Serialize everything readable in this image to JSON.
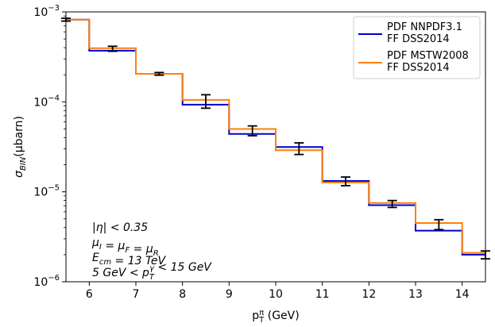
{
  "chart_data": {
    "type": "line",
    "step": true,
    "log_y": true,
    "xlabel_base": "p",
    "xlabel_sub": "T",
    "xlabel_sup": "π",
    "xlabel_unit": " (GeV)",
    "ylabel_base": "σ",
    "ylabel_sub": "BIN",
    "ylabel_unit": "(μbarn)",
    "xlim": [
      5.5,
      14.5
    ],
    "ylim": [
      1e-06,
      0.001
    ],
    "x_ticks": [
      6,
      7,
      8,
      9,
      10,
      11,
      12,
      13,
      14
    ],
    "y_ticks": [
      {
        "value": 1e-06,
        "base": "10",
        "exp": "−6"
      },
      {
        "value": 1e-05,
        "base": "10",
        "exp": "−5"
      },
      {
        "value": 0.0001,
        "base": "10",
        "exp": "−4"
      },
      {
        "value": 0.001,
        "base": "10",
        "exp": "−3"
      }
    ],
    "bin_edges": [
      5.5,
      6,
      7,
      8,
      9,
      10,
      11,
      12,
      13,
      14,
      14.5
    ],
    "series": [
      {
        "name": "PDF NNPDF3.1\nFF DSS2014",
        "color": "#0000cc",
        "values": [
          0.00082,
          0.00037,
          0.000205,
          9.3e-05,
          4.4e-05,
          3.15e-05,
          1.32e-05,
          7.1e-06,
          3.7e-06,
          2e-06
        ]
      },
      {
        "name": "PDF MSTW2008\nFF DSS2014",
        "color": "#ff7f0e",
        "values": [
          0.00082,
          0.000395,
          0.000205,
          0.000105,
          5e-05,
          2.9e-05,
          1.27e-05,
          7.5e-06,
          4.5e-06,
          2.1e-06
        ]
      }
    ],
    "error_bars": [
      {
        "x": 5.5,
        "y": 0.00082,
        "lo": 0.00079,
        "hi": 0.00085
      },
      {
        "x": 6.5,
        "y": 0.00039,
        "lo": 0.000365,
        "hi": 0.000415
      },
      {
        "x": 7.5,
        "y": 0.000205,
        "lo": 0.000198,
        "hi": 0.000212
      },
      {
        "x": 8.5,
        "y": 0.0001,
        "lo": 8.5e-05,
        "hi": 0.00012
      },
      {
        "x": 9.5,
        "y": 4.8e-05,
        "lo": 4.2e-05,
        "hi": 5.4e-05
      },
      {
        "x": 10.5,
        "y": 3e-05,
        "lo": 2.6e-05,
        "hi": 3.5e-05
      },
      {
        "x": 11.5,
        "y": 1.31e-05,
        "lo": 1.17e-05,
        "hi": 1.46e-05
      },
      {
        "x": 12.5,
        "y": 7.3e-06,
        "lo": 6.7e-06,
        "hi": 8e-06
      },
      {
        "x": 13.5,
        "y": 4.3e-06,
        "lo": 3.8e-06,
        "hi": 4.9e-06
      },
      {
        "x": 14.5,
        "y": 2e-06,
        "lo": 1.8e-06,
        "hi": 2.2e-06
      }
    ],
    "legend_position": "top-right",
    "annotations": [
      "|η| < 0.35",
      "μ_I = μ_F = μ_R",
      "E_cm = 13 TeV",
      "5 GeV < p_T^γ < 15 GeV"
    ]
  }
}
